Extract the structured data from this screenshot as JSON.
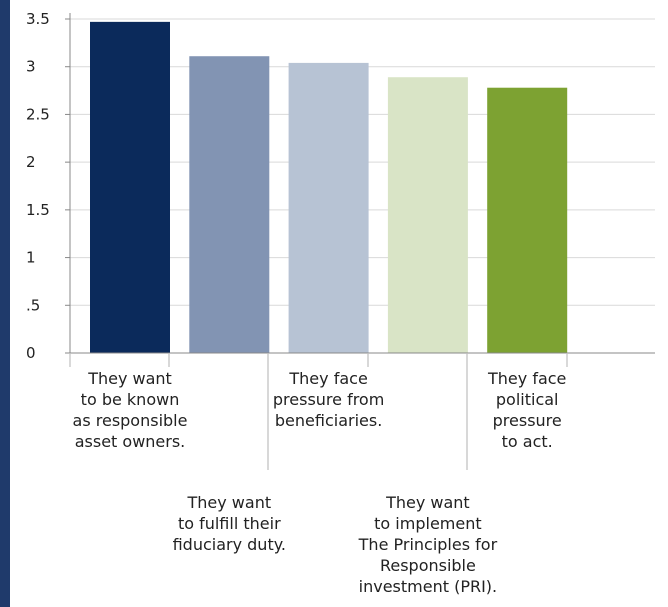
{
  "chart_data": {
    "type": "bar",
    "title": "",
    "xlabel": "",
    "ylabel": "",
    "ylim": [
      0,
      3.5
    ],
    "y_ticks": [
      "0",
      ".5",
      "1",
      "1.5",
      "2",
      "2.5",
      "3",
      "3.5"
    ],
    "grid": true,
    "categories": [
      [
        "They want",
        "to be known",
        "as responsible",
        "asset owners."
      ],
      [
        "They want",
        "to fulfill their",
        "fiduciary duty."
      ],
      [
        "They face",
        "pressure from",
        "beneficiaries."
      ],
      [
        "They want",
        "to implement",
        "The Principles for",
        "Responsible",
        "investment (PRI)."
      ],
      [
        "They face",
        "political",
        "pressure",
        "to act."
      ]
    ],
    "values": [
      3.47,
      3.11,
      3.04,
      2.89,
      2.78
    ],
    "colors": [
      "#0b2a5b",
      "#8294b3",
      "#b7c3d4",
      "#d9e4c6",
      "#7da232"
    ],
    "label_rows": [
      "top",
      "bottom",
      "top",
      "bottom",
      "top"
    ]
  }
}
